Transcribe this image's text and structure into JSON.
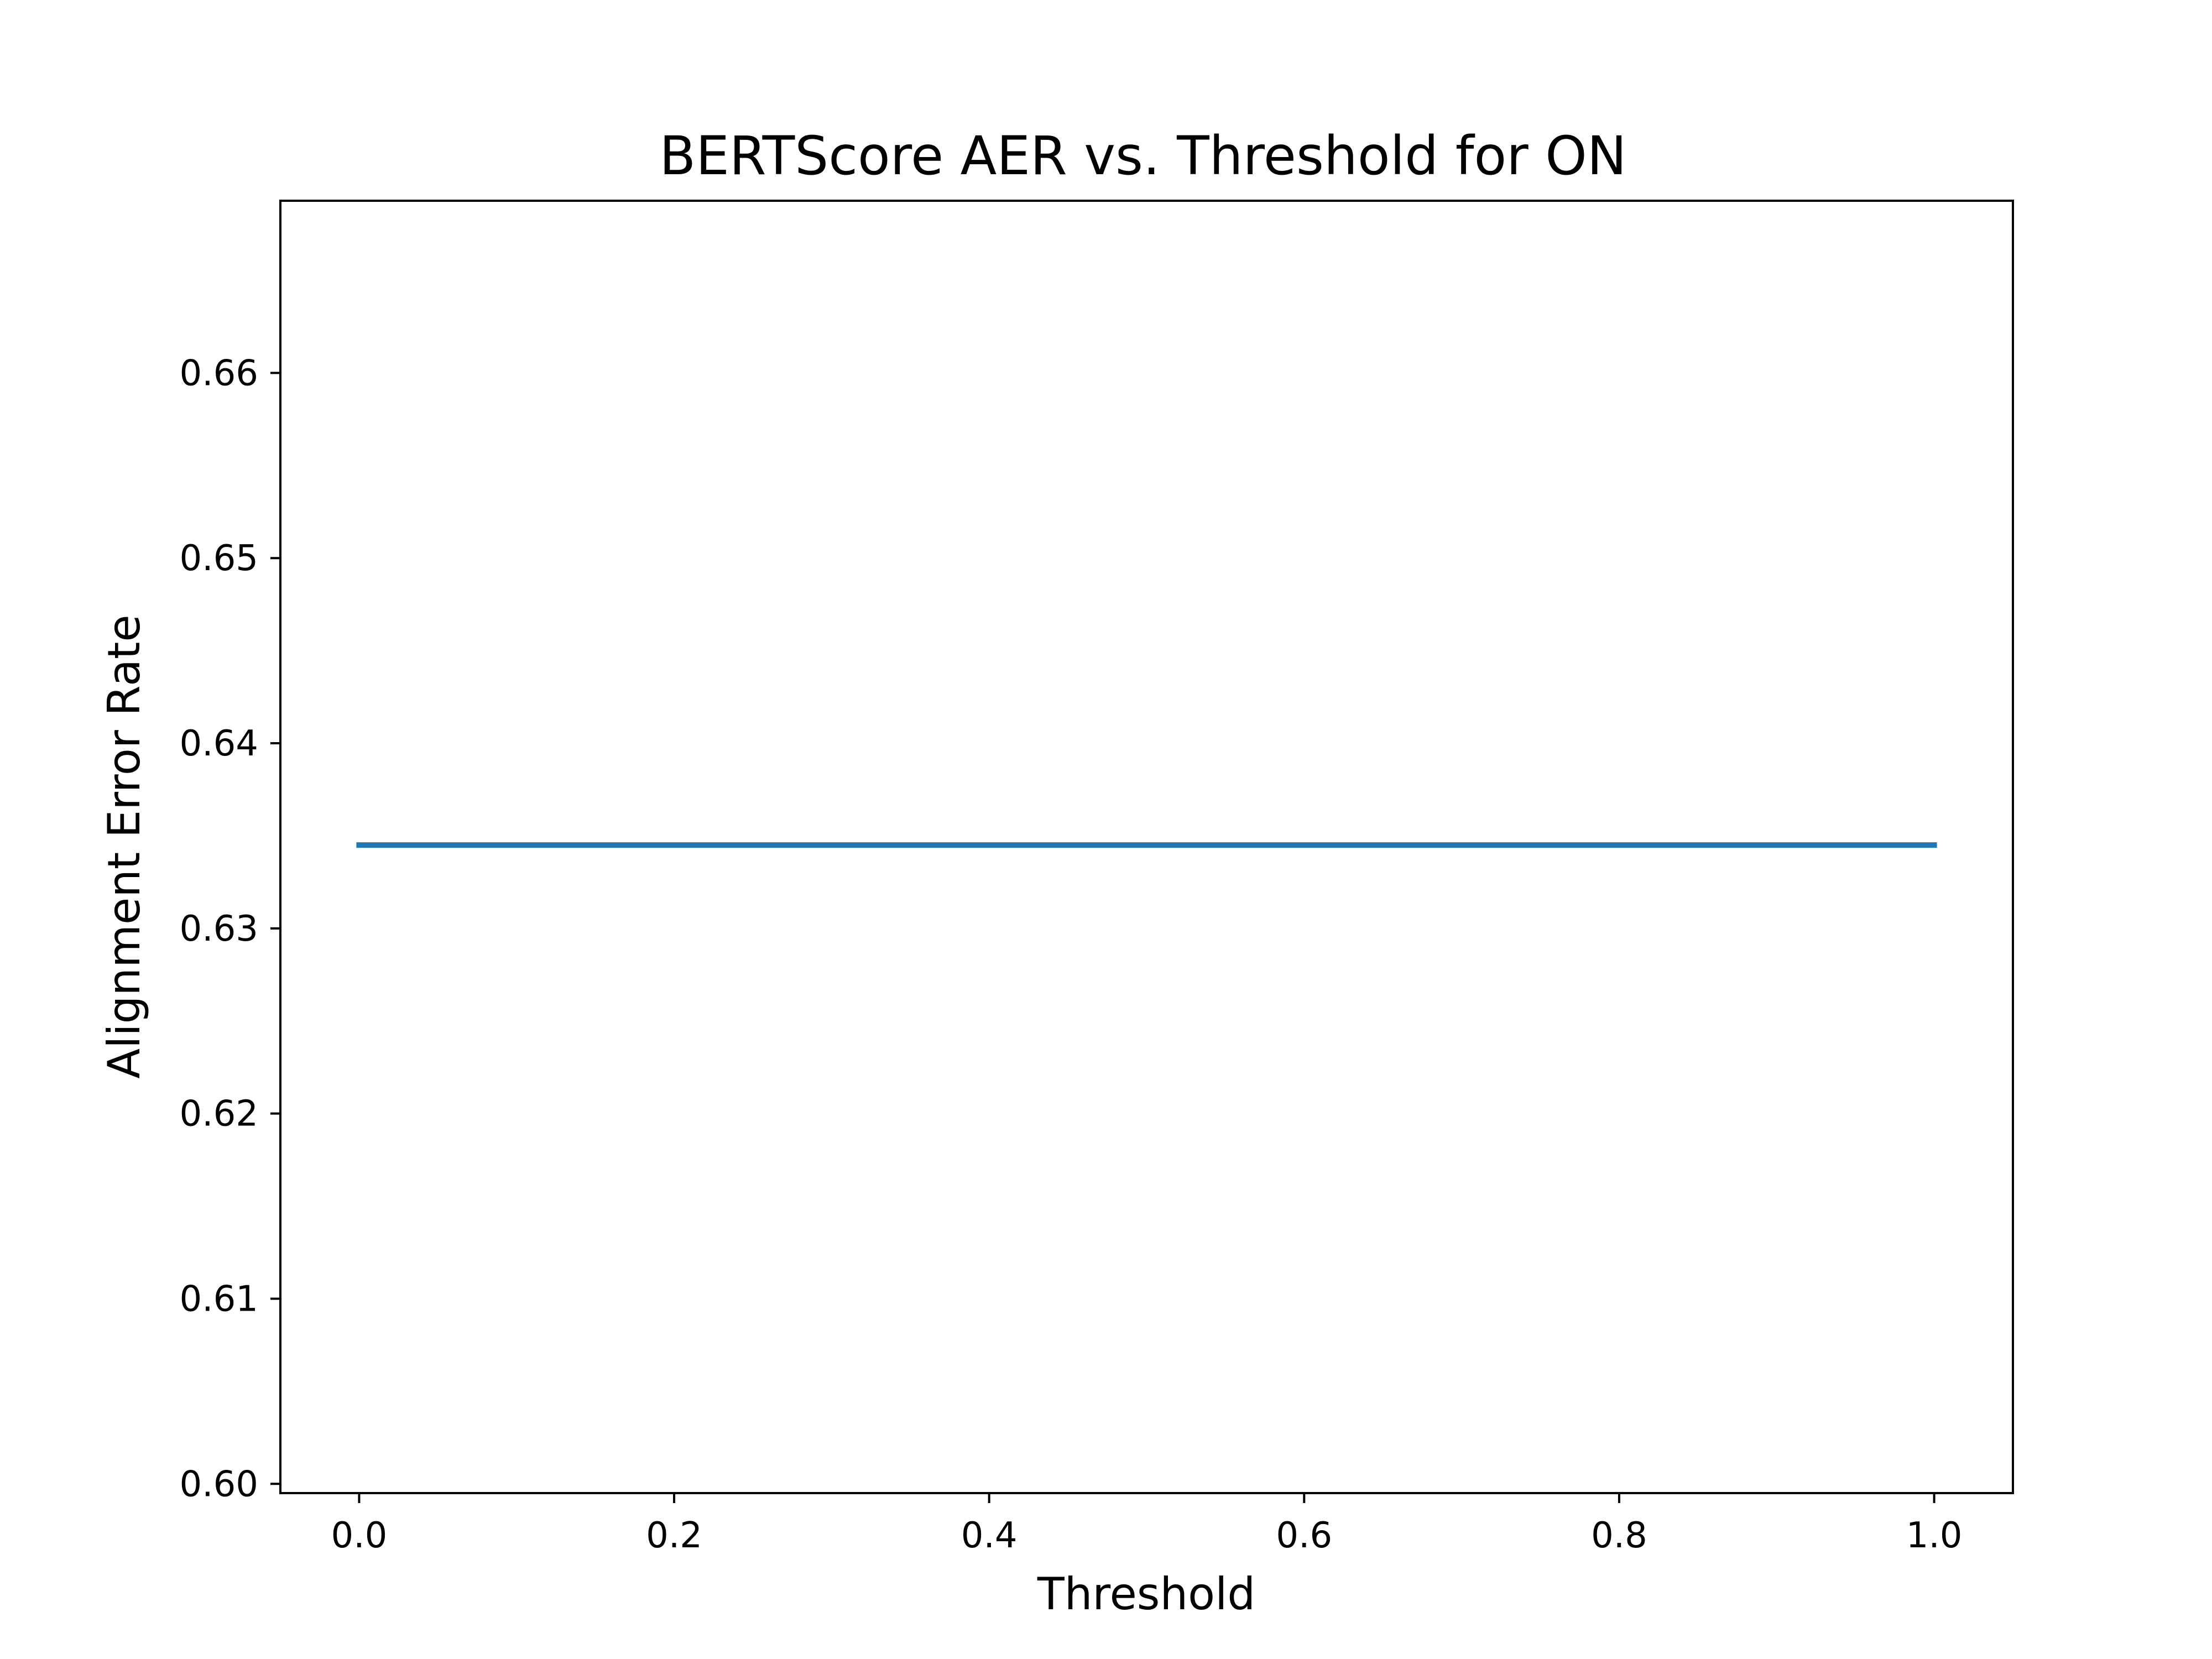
{
  "chart_data": {
    "type": "line",
    "title": "BERTScore AER vs. Threshold for ON",
    "xlabel": "Threshold",
    "ylabel": "Alignment Error Rate",
    "xlim": [
      -0.05,
      1.05
    ],
    "ylim": [
      0.5995,
      0.6693
    ],
    "xticks": [
      0.0,
      0.2,
      0.4,
      0.6,
      0.8,
      1.0
    ],
    "xtick_labels": [
      "0.0",
      "0.2",
      "0.4",
      "0.6",
      "0.8",
      "1.0"
    ],
    "yticks": [
      0.6,
      0.61,
      0.62,
      0.63,
      0.64,
      0.65,
      0.66
    ],
    "ytick_labels": [
      "0.60",
      "0.61",
      "0.62",
      "0.63",
      "0.64",
      "0.65",
      "0.66"
    ],
    "grid": false,
    "series": [
      {
        "color": "#1f77b4",
        "x": [
          0.0,
          0.1,
          0.2,
          0.3,
          0.4,
          0.5,
          0.6,
          0.7,
          0.8,
          0.9,
          1.0
        ],
        "y": [
          0.6345,
          0.6345,
          0.6345,
          0.6345,
          0.6345,
          0.6345,
          0.6345,
          0.6345,
          0.6345,
          0.6345,
          0.6345
        ]
      }
    ]
  }
}
